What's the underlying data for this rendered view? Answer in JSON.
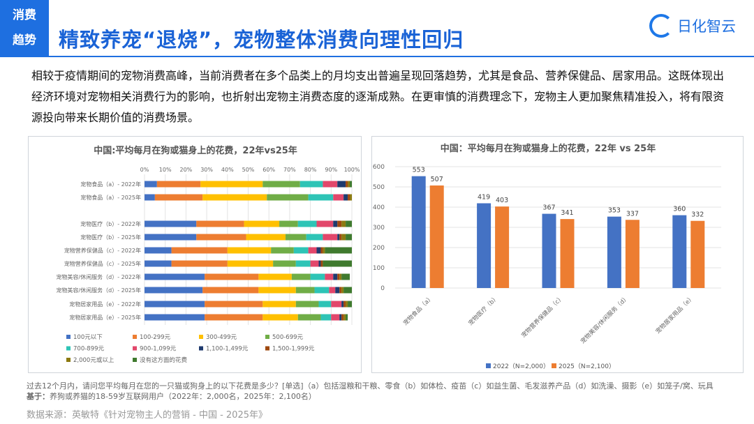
{
  "header": {
    "tag_line1": "消费",
    "tag_line2": "趋势",
    "title": "精致养宠“退烧”，宠物整体消费向理性回归",
    "logo_text": "日化智云"
  },
  "paragraph": "相较于疫情期间的宠物消费高峰，当前消费者在多个品类上的月均支出普遍呈现回落趋势，尤其是食品、营养保健品、居家用品。这既体现出经济环境对宠物相关消费行为的影响，也折射出宠物主消费态度的逐渐成熟。在更审慎的消费理念下，宠物主人更加聚焦精准投入，将有限资源投向带来长期价值的消费场景。",
  "footnote": {
    "question": "过去12个月内，请问您平均每月在您的一只猫或狗身上的以下花费是多少？[单选]（a）包括湿粮和干粮、零食（b）如体检、疫苗（c）如益生菌、毛发滋养产品（d）如洗澡、摄影（e）如笼子/窝、玩具",
    "base_label": "基于：",
    "base": "养狗或养猫的18-59岁互联网用户（2022年：2,000名，2025年：2,100名）",
    "source": "数据来源：英敏特《针对宠物主人的营销 - 中国 - 2025年》"
  },
  "chart_data": [
    {
      "type": "bar",
      "orientation": "horizontal",
      "stacked": "percent",
      "title": "中国:平均每月在狗或猫身上的花费，22年vs25年",
      "xticks": [
        "0%",
        "10%",
        "20%",
        "30%",
        "40%",
        "50%",
        "60%",
        "70%",
        "80%",
        "90%",
        "100%"
      ],
      "xlim": [
        0,
        100
      ],
      "grid": true,
      "legend": "bottom",
      "categories": [
        "宠物食品（a）- 2022年",
        "宠物食品（a）- 2025年",
        "",
        "宠物医疗（b）- 2022年",
        "宠物医疗（b）- 2025年",
        "宠物营养保健品（c）- 2022年",
        "宠物营养保健品（c）- 2025年",
        "宠物美容/休闲服务（d）- 2022年",
        "宠物美容/休闲服务（d）- 2025年",
        "宠物居家用品（e）- 2022年",
        "宠物居家用品（e）- 2025年"
      ],
      "series": [
        {
          "name": "100元以下",
          "color": "#4472c4",
          "values": [
            6,
            5,
            null,
            25,
            25,
            13,
            13,
            29,
            28,
            29,
            29
          ]
        },
        {
          "name": "100-299元",
          "color": "#ed7d31",
          "values": [
            21,
            23,
            null,
            23,
            24,
            27,
            27,
            26,
            27,
            28,
            28
          ]
        },
        {
          "name": "300-499元",
          "color": "#ffc000",
          "values": [
            30,
            31,
            null,
            17,
            19,
            21,
            22,
            16,
            18,
            16,
            17
          ]
        },
        {
          "name": "500-699元",
          "color": "#70ad47",
          "values": [
            18,
            20,
            null,
            9,
            10,
            11,
            11,
            9,
            9,
            11,
            11
          ]
        },
        {
          "name": "700-899元",
          "color": "#2ec4b6",
          "values": [
            11,
            12,
            null,
            9,
            8,
            7,
            7,
            7,
            7,
            6,
            5
          ]
        },
        {
          "name": "900-1,099元",
          "color": "#e2476b",
          "values": [
            7,
            5,
            null,
            8,
            7,
            4,
            4,
            4,
            3,
            5,
            4
          ]
        },
        {
          "name": "1,100-1,499元",
          "color": "#1f3a6e",
          "values": [
            4,
            2,
            null,
            2,
            1,
            2,
            1,
            2,
            2,
            1,
            1
          ]
        },
        {
          "name": "1,500-1,999元",
          "color": "#9e480e",
          "values": [
            1,
            1,
            null,
            2,
            1,
            1,
            1,
            1,
            1,
            1,
            1
          ]
        },
        {
          "name": "2,000元或以上",
          "color": "#8c7a10",
          "values": [
            1,
            1,
            null,
            2,
            2,
            1,
            0,
            1,
            1,
            1,
            1
          ]
        },
        {
          "name": "没有这方面的花费",
          "color": "#3f7a2e",
          "values": [
            1,
            0,
            null,
            3,
            3,
            13,
            14,
            4,
            4,
            2,
            1
          ]
        }
      ]
    },
    {
      "type": "bar",
      "title": "中国：平均每月在狗或猫身上的花费，22年 vs 25年",
      "ylim": [
        0,
        600
      ],
      "yticks": [
        "0",
        "100",
        "200",
        "300",
        "400",
        "500",
        "600"
      ],
      "grid": true,
      "legend": "bottom",
      "categories": [
        "宠物食品（a）",
        "宠物医疗（b）",
        "宠物营养保健品（c）",
        "宠物美容/休闲服务（d）",
        "宠物居家用品（e）"
      ],
      "series": [
        {
          "name": "2022（N=2,000）",
          "color": "#4472c4",
          "values": [
            553,
            419,
            367,
            353,
            360
          ]
        },
        {
          "name": "2025（N=2,100）",
          "color": "#ed7d31",
          "values": [
            507,
            403,
            341,
            337,
            332
          ]
        }
      ]
    }
  ]
}
